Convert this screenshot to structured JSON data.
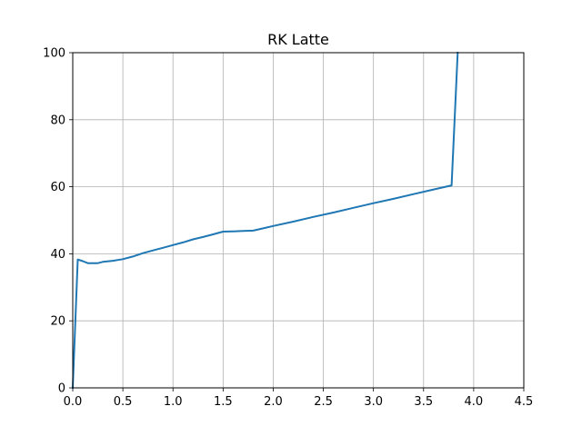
{
  "chart_data": {
    "type": "line",
    "title": "RK Latte",
    "xlabel": "",
    "ylabel": "",
    "xlim": [
      0,
      4.5
    ],
    "ylim": [
      0,
      100
    ],
    "xticks": [
      "0.0",
      "0.5",
      "1.0",
      "1.5",
      "2.0",
      "2.5",
      "3.0",
      "3.5",
      "4.0",
      "4.5"
    ],
    "yticks": [
      "0",
      "20",
      "40",
      "60",
      "80",
      "100"
    ],
    "grid": true,
    "legend": "none",
    "series": [
      {
        "color": "#1f77b4",
        "x": [
          0.0,
          0.05,
          0.1,
          0.15,
          0.2,
          0.25,
          0.3,
          0.4,
          0.5,
          0.6,
          0.7,
          0.8,
          0.9,
          1.0,
          1.1,
          1.2,
          1.3,
          1.4,
          1.5,
          1.6,
          1.7,
          1.8,
          1.9,
          2.0,
          2.2,
          2.4,
          2.6,
          2.8,
          3.0,
          3.2,
          3.4,
          3.6,
          3.78,
          3.84
        ],
        "y": [
          0,
          38.3,
          37.8,
          37.2,
          37.2,
          37.2,
          37.6,
          37.9,
          38.4,
          39.2,
          40.2,
          41.0,
          41.8,
          42.6,
          43.4,
          44.3,
          45.0,
          45.8,
          46.6,
          46.7,
          46.8,
          46.9,
          47.6,
          48.3,
          49.6,
          51.0,
          52.3,
          53.7,
          55.1,
          56.4,
          57.8,
          59.2,
          60.4,
          100
        ]
      }
    ]
  }
}
